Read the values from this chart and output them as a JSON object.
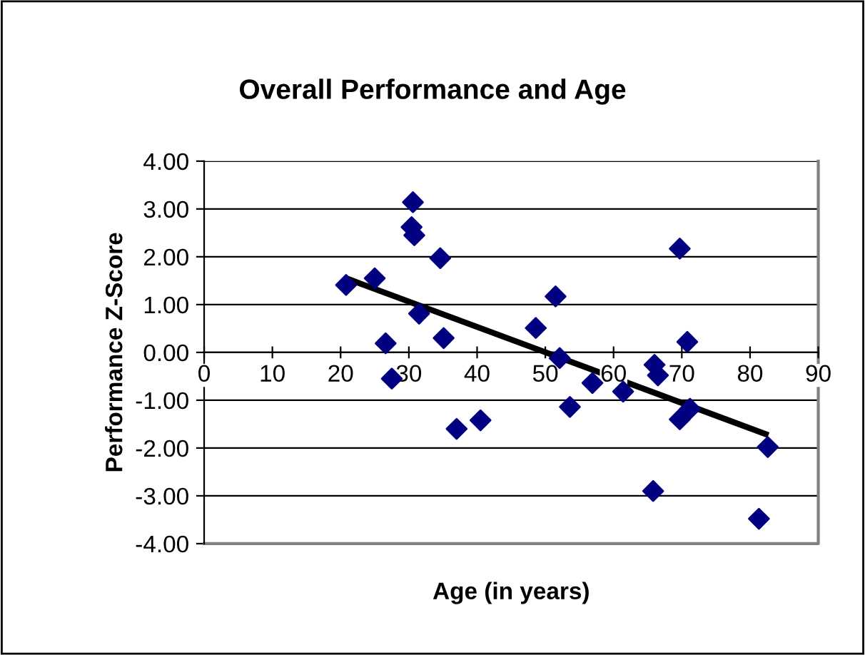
{
  "chart_data": {
    "type": "scatter",
    "title": "Overall Performance and Age",
    "xlabel": "Age (in years)",
    "ylabel": "Performance Z-Score",
    "xlim": [
      0,
      90
    ],
    "xticks": [
      0,
      10,
      20,
      30,
      40,
      50,
      60,
      70,
      80,
      90
    ],
    "ylim": [
      -4,
      4
    ],
    "yticks": [
      {
        "value": -4,
        "label": "-4.00"
      },
      {
        "value": -3,
        "label": "-3.00"
      },
      {
        "value": -2,
        "label": "-2.00"
      },
      {
        "value": -1,
        "label": "-1.00"
      },
      {
        "value": 0,
        "label": "0.00"
      },
      {
        "value": 1,
        "label": "1.00"
      },
      {
        "value": 2,
        "label": "2.00"
      },
      {
        "value": 3,
        "label": "3.00"
      },
      {
        "value": 4,
        "label": "4.00"
      }
    ],
    "grid": "y",
    "series": [
      {
        "type": "scatter",
        "marker": "diamond",
        "color": "#000080",
        "x": [
          20.8,
          25.0,
          30.6,
          30.4,
          30.8,
          34.6,
          31.5,
          35.1,
          26.6,
          27.5,
          37.0,
          40.5,
          48.6,
          51.5,
          52.1,
          53.6,
          56.9,
          61.4,
          66.0,
          66.5,
          69.7,
          70.8,
          69.7,
          71.2,
          65.8,
          82.6,
          81.3
        ],
        "values": [
          1.41,
          1.55,
          3.14,
          2.62,
          2.45,
          1.97,
          0.81,
          0.3,
          0.19,
          -0.55,
          -1.6,
          -1.42,
          0.51,
          1.17,
          -0.12,
          -1.14,
          -0.64,
          -0.82,
          -0.26,
          -0.48,
          2.17,
          0.22,
          -1.4,
          -1.18,
          -2.9,
          -1.98,
          -3.48
        ]
      },
      {
        "type": "line",
        "marker": "none",
        "color": "#000000",
        "x": [
          20.8,
          82.7
        ],
        "values": [
          1.55,
          -1.73
        ]
      }
    ]
  }
}
